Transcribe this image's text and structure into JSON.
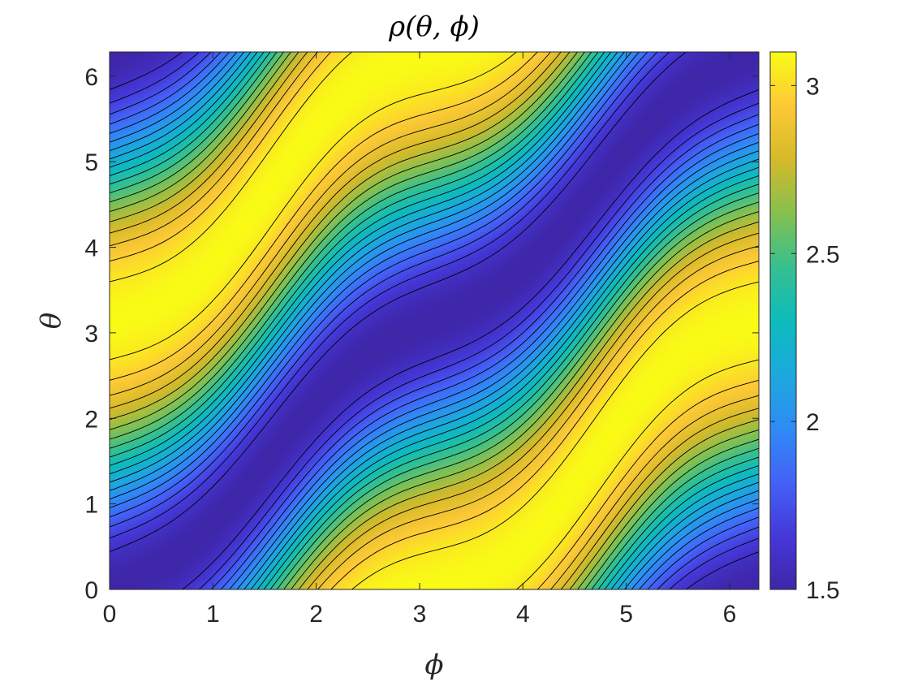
{
  "chart_data": {
    "type": "heatmap",
    "title": "ρ(θ, ϕ)",
    "xlabel": "ϕ",
    "ylabel": "θ",
    "xlim": [
      0,
      6.283
    ],
    "ylim": [
      0,
      6.283
    ],
    "xticks": [
      0,
      1,
      2,
      3,
      4,
      5,
      6
    ],
    "yticks": [
      0,
      1,
      2,
      3,
      4,
      5,
      6
    ],
    "colorbar": {
      "range": [
        1.5,
        3.1
      ],
      "ticks": [
        1.5,
        2,
        2.5,
        3
      ],
      "tick_labels": [
        "1.5",
        "2",
        "2.5",
        "3"
      ],
      "colormap": "parula"
    },
    "contour_lines": true,
    "contour_color": "#000000",
    "field_description": "periodic density with bright ridges along θ ≈ ϕ + π (max ≈ 3.1) and valleys along θ ≈ ϕ (min ≈ 1.5)"
  }
}
